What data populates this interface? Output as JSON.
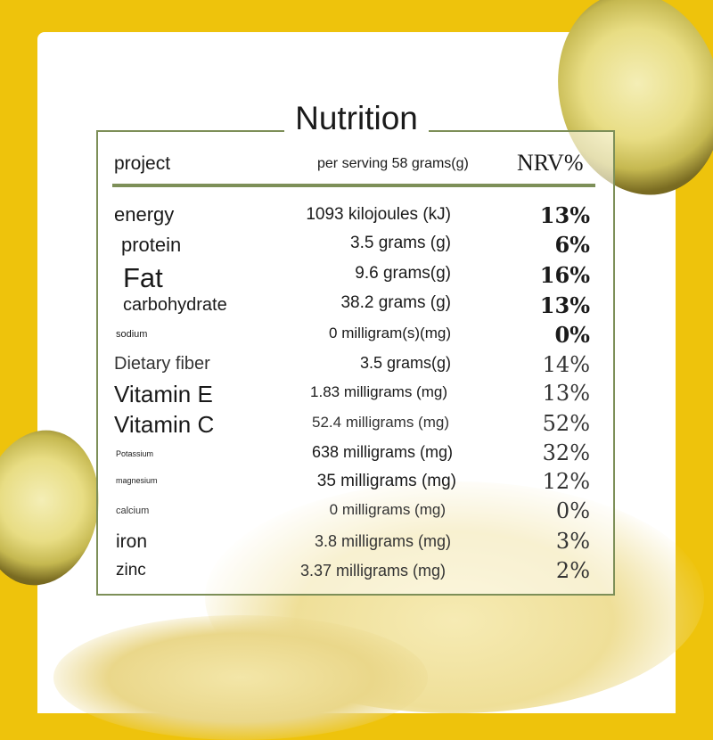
{
  "title": "Nutrition",
  "header": {
    "project": "project",
    "serving": "per serving 58 grams(g)",
    "nrv": "NRV%"
  },
  "rows": [
    {
      "name": "energy",
      "amount": "1093 kilojoules (kJ)",
      "nrv": "13%"
    },
    {
      "name": "protein",
      "amount": "3.5 grams (g)",
      "nrv": "6%"
    },
    {
      "name": "Fat",
      "amount": "9.6 grams(g)",
      "nrv": "16%"
    },
    {
      "name": "carbohydrate",
      "amount": "38.2 grams (g)",
      "nrv": "13%"
    },
    {
      "name": "sodium",
      "amount": "0 milligram(s)(mg)",
      "nrv": "0%"
    },
    {
      "name": "Dietary fiber",
      "amount": "3.5 grams(g)",
      "nrv": "14%"
    },
    {
      "name": "Vitamin E",
      "amount": "1.83 milligrams (mg)",
      "nrv": "13%"
    },
    {
      "name": "Vitamin C",
      "amount": "52.4 milligrams (mg)",
      "nrv": "52%"
    },
    {
      "name": "Potassium",
      "amount": "638 milligrams (mg)",
      "nrv": "32%"
    },
    {
      "name": "magnesium",
      "amount": "35 milligrams (mg)",
      "nrv": "12%"
    },
    {
      "name": "calcium",
      "amount": "0 milligrams (mg)",
      "nrv": "0%"
    },
    {
      "name": "iron",
      "amount": "3.8 milligrams (mg)",
      "nrv": "3%"
    },
    {
      "name": "zinc",
      "amount": "3.37 milligrams (mg)",
      "nrv": "2%"
    }
  ],
  "colors": {
    "background": "#EEC30C",
    "border": "#7d8f58",
    "card": "#ffffff"
  }
}
